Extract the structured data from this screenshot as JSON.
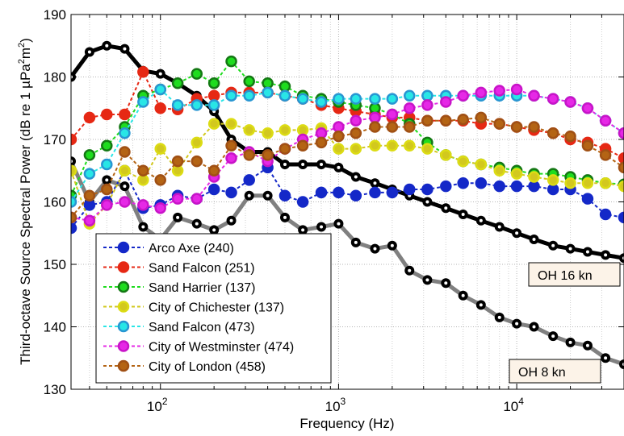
{
  "chart_data": {
    "type": "line",
    "xscale": "log",
    "xlim": [
      31.5,
      40000
    ],
    "ylim": [
      130,
      190
    ],
    "xlabel": "Frequency (Hz)",
    "ylabel_pre": "Third-octave Source Spectral Power (dB re 1 µPa",
    "ylabel_sup1": "2",
    "ylabel_mid": "m",
    "ylabel_sup2": "2",
    "ylabel_post": ")",
    "ylabel": "Third-octave Source Spectral Power (dB re 1 µPa²m²)",
    "grid": true,
    "y_ticks": [
      130,
      140,
      150,
      160,
      170,
      180,
      190
    ],
    "x_ticks": [
      {
        "value": 100,
        "base": "10",
        "exp": "2"
      },
      {
        "value": 1000,
        "base": "10",
        "exp": "3"
      },
      {
        "value": 10000,
        "base": "10",
        "exp": "4"
      }
    ],
    "frequencies": [
      31.5,
      40,
      50,
      63,
      80,
      100,
      125,
      160,
      200,
      250,
      315,
      400,
      500,
      630,
      800,
      1000,
      1250,
      1600,
      2000,
      2500,
      3150,
      4000,
      5000,
      6300,
      8000,
      10000,
      12500,
      16000,
      20000,
      25000,
      31500,
      40000
    ],
    "legend_position": "bottom-left",
    "series": [
      {
        "name": "OH 8 kn",
        "color": "#808080",
        "marker": "#000000",
        "style": "solid",
        "width": 5,
        "values": [
          166.5,
          160,
          163.5,
          162.5,
          156,
          154,
          157.5,
          156.5,
          155.5,
          157,
          161,
          161,
          157.5,
          155.5,
          156,
          156.5,
          153.5,
          152.5,
          153,
          149,
          147.5,
          147,
          145,
          143.5,
          141.5,
          140.5,
          140,
          138.5,
          137.5,
          137,
          135,
          134
        ]
      },
      {
        "name": "OH 16 kn",
        "color": "#000000",
        "marker": "#000000",
        "style": "solid",
        "width": 5,
        "values": [
          180,
          184,
          185,
          184.5,
          181,
          180.5,
          179,
          177,
          174.5,
          170,
          168,
          168,
          166,
          166,
          166,
          165.5,
          164,
          163,
          162,
          161,
          160,
          159,
          158,
          157,
          156,
          155,
          154,
          153,
          152.5,
          152,
          151.5,
          151
        ]
      },
      {
        "name": "Arco Axe (240)",
        "color": "#1428c8",
        "marker": "#1428c8",
        "style": "dashed",
        "width": 2,
        "values": [
          155.8,
          159.5,
          160,
          165,
          159,
          159.5,
          161,
          160.5,
          162,
          161.5,
          163.5,
          165.5,
          161,
          160,
          161.5,
          161.5,
          161,
          161.5,
          161.5,
          162,
          162,
          162.5,
          163,
          163,
          162.5,
          162.5,
          162.5,
          162,
          162,
          160.5,
          158,
          157.5
        ]
      },
      {
        "name": "Sand Falcon (251)",
        "color": "#e62814",
        "marker": "#e62814",
        "style": "dashed",
        "width": 2,
        "values": [
          170,
          173.5,
          174,
          174,
          180.8,
          175,
          174.8,
          176.5,
          177,
          177.5,
          177.5,
          177.5,
          177,
          176.5,
          175.5,
          175,
          174.5,
          174,
          173.5,
          173.5,
          173,
          173,
          173,
          172.5,
          172.5,
          172,
          171.5,
          171,
          170,
          169.5,
          168.5,
          167
        ]
      },
      {
        "name": "Sand Harrier (137)",
        "color": "#1edc1e",
        "marker": "#147814",
        "style": "dashed",
        "width": 2,
        "values": [
          161,
          167.5,
          169,
          172,
          177,
          178,
          179,
          180.5,
          179,
          182.5,
          179.3,
          179,
          178.5,
          177,
          176.5,
          176,
          175.5,
          175,
          174,
          172.5,
          169.5,
          167.5,
          166.5,
          166,
          165.5,
          165,
          164.5,
          164.5,
          164,
          163.5,
          163,
          162.8
        ]
      },
      {
        "name": "City of Chichester (137)",
        "color": "#d2c81e",
        "marker": "#dcdc14",
        "style": "dashed",
        "width": 2,
        "values": [
          165,
          156.5,
          159.5,
          165,
          163.5,
          168.5,
          165,
          169.5,
          172.5,
          172.5,
          171.5,
          171,
          171.5,
          171.5,
          171.8,
          168.5,
          168.5,
          169,
          169,
          169,
          168.5,
          167.5,
          166.5,
          166,
          165,
          164.5,
          164,
          163.5,
          163,
          163,
          163,
          162.5
        ]
      },
      {
        "name": "Sand Falcon (473)",
        "color": "#28e6e6",
        "marker": "#2896d2",
        "style": "dashed",
        "width": 2,
        "values": [
          160,
          164.5,
          166,
          171,
          176,
          178,
          175.5,
          175.5,
          175.5,
          177,
          177,
          177.5,
          177,
          176.5,
          176,
          176.5,
          176.5,
          176.5,
          176.5,
          177,
          177,
          177,
          177,
          177,
          177,
          177,
          177,
          176.5,
          176,
          175,
          173,
          171
        ]
      },
      {
        "name": "City of Westminster (474)",
        "color": "#e628e6",
        "marker": "#c814c8",
        "style": "dashed",
        "width": 2,
        "values": [
          157.5,
          157,
          159.5,
          160,
          159.5,
          159,
          160.5,
          160.5,
          164,
          167,
          168,
          166.5,
          168.5,
          170,
          171,
          172,
          173,
          173.5,
          174,
          175,
          175.5,
          176,
          177,
          177.5,
          177.8,
          178,
          177,
          176.5,
          176,
          175,
          173,
          171
        ]
      },
      {
        "name": "City of London (458)",
        "color": "#b46414",
        "marker": "#a05014",
        "style": "dashed",
        "width": 2,
        "values": [
          157.5,
          161,
          162,
          168,
          165,
          163.5,
          166.5,
          166.5,
          165,
          169,
          167.5,
          167.5,
          168.5,
          169,
          169.5,
          170.5,
          171,
          172,
          172,
          172,
          173,
          173,
          173.2,
          173.5,
          172.5,
          172,
          172,
          171,
          170.5,
          169,
          167.5,
          165.5
        ]
      }
    ],
    "legend_entries": [
      "Arco Axe (240)",
      "Sand Falcon (251)",
      "Sand Harrier (137)",
      "City of Chichester (137)",
      "Sand Falcon (473)",
      "City of Westminster (474)",
      "City of London (458)"
    ],
    "annotations": [
      {
        "text": "OH 16 kn",
        "series": "OH 16 kn"
      },
      {
        "text": "OH 8 kn",
        "series": "OH 8 kn"
      }
    ]
  }
}
